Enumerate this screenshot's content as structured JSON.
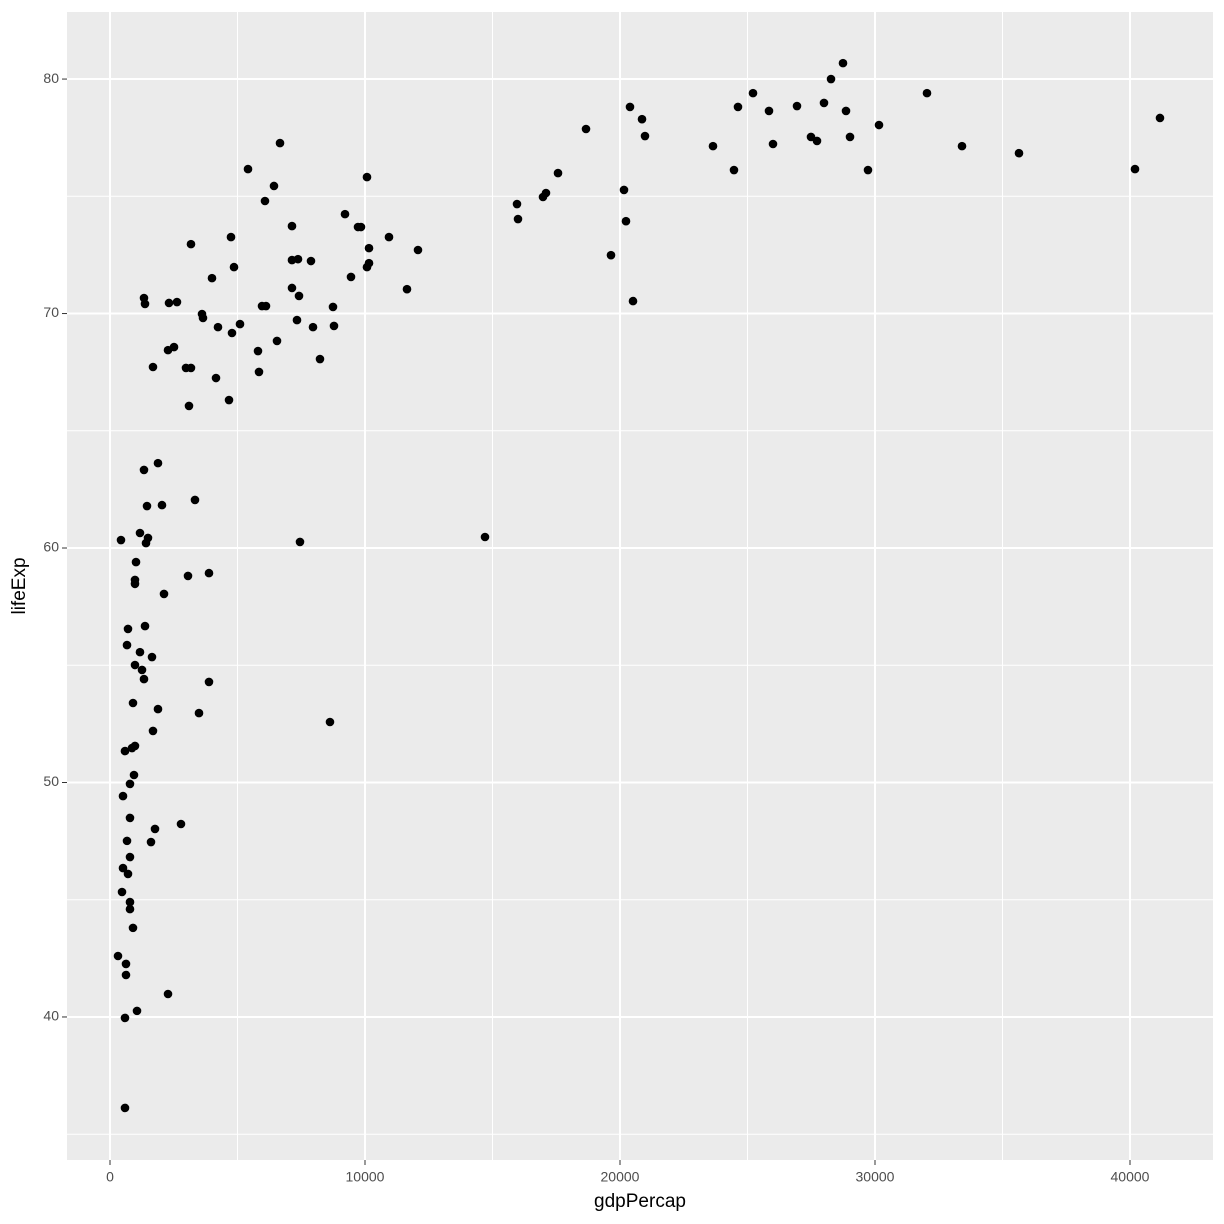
{
  "chart_data": {
    "type": "scatter",
    "x_label": "gdpPercap",
    "y_label": "lifeExp",
    "color": "#000000",
    "panel_color": "#ebebeb",
    "grid": true,
    "xlim": [
      -1686,
      43255
    ],
    "ylim": [
      33.9,
      82.86
    ],
    "xticks": [
      0,
      10000,
      20000,
      30000,
      40000
    ],
    "yticks": [
      40,
      50,
      60,
      70,
      80
    ],
    "x": [
      41176,
      40196,
      35647,
      33412,
      32039,
      30157,
      29725,
      29020,
      28863,
      28745,
      28275,
      28000,
      27725,
      27490,
      26941,
      26000,
      25843,
      25216,
      24627,
      24470,
      23647,
      20980,
      20863,
      20392,
      20510,
      20235,
      20157,
      19647,
      18667,
      17569,
      17098,
      16980,
      15961,
      16000,
      14706,
      12078,
      11647,
      10941,
      10078,
      10157,
      10157,
      10078,
      9843,
      9725,
      9216,
      9451,
      8745,
      8784,
      8627,
      8235,
      7961,
      7882,
      7412,
      7373,
      7333,
      7451,
      7137,
      7137,
      7137,
      6667,
      6431,
      6549,
      6078,
      6118,
      5961,
      5804,
      5843,
      5412,
      5098,
      4863,
      4784,
      4745,
      4667,
      4235,
      4157,
      4000,
      3882,
      3882,
      3647,
      3608,
      3490,
      3333,
      3176,
      3176,
      3098,
      3059,
      2980,
      2784,
      2627,
      2510,
      2314,
      2275,
      2275,
      2039,
      2118,
      1882,
      1882,
      1765,
      1686,
      1686,
      1647,
      1608,
      1490,
      1451,
      1373,
      1333,
      1333,
      1373,
      1412,
      1333,
      1255,
      1176,
      1176,
      1059,
      1020,
      980,
      980,
      980,
      980,
      941,
      902,
      902,
      863,
      784,
      784,
      784,
      784,
      784,
      706,
      706,
      667,
      667,
      588,
      627,
      627,
      588,
      588,
      510,
      510,
      471,
      431,
      314
    ],
    "values": [
      78.34,
      76.16,
      76.84,
      77.14,
      79.4,
      78.04,
      76.12,
      77.53,
      78.64,
      80.68,
      80.0,
      78.98,
      77.36,
      77.53,
      78.85,
      77.23,
      78.64,
      79.4,
      78.81,
      76.12,
      77.14,
      77.57,
      78.29,
      78.81,
      70.53,
      73.94,
      75.27,
      72.49,
      77.87,
      75.99,
      75.14,
      74.97,
      74.67,
      74.03,
      60.47,
      72.71,
      71.04,
      73.26,
      75.82,
      72.79,
      72.15,
      71.98,
      73.69,
      73.69,
      74.24,
      71.56,
      70.28,
      69.47,
      52.58,
      68.06,
      69.42,
      72.24,
      70.75,
      72.32,
      69.72,
      60.26,
      73.73,
      72.28,
      71.09,
      77.27,
      75.44,
      68.83,
      74.8,
      70.32,
      70.32,
      68.4,
      67.51,
      76.16,
      69.55,
      71.98,
      69.17,
      73.26,
      66.31,
      69.42,
      67.25,
      71.51,
      54.29,
      58.93,
      69.81,
      69.98,
      52.96,
      62.05,
      72.96,
      67.68,
      66.06,
      58.81,
      67.68,
      48.23,
      70.49,
      68.57,
      70.45,
      68.44,
      40.98,
      61.83,
      58.04,
      63.62,
      53.13,
      48.02,
      67.72,
      52.2,
      55.35,
      47.46,
      60.43,
      61.79,
      70.41,
      70.66,
      63.33,
      56.67,
      60.21,
      54.41,
      54.8,
      60.64,
      55.56,
      40.26,
      59.4,
      58.47,
      58.64,
      51.56,
      55.01,
      50.32,
      53.39,
      43.8,
      51.47,
      44.9,
      44.6,
      46.82,
      49.94,
      48.49,
      56.55,
      46.1,
      47.51,
      55.86,
      51.34,
      42.26,
      41.79,
      39.96,
      36.12,
      49.42,
      46.35,
      45.33,
      60.34,
      42.6
    ]
  }
}
